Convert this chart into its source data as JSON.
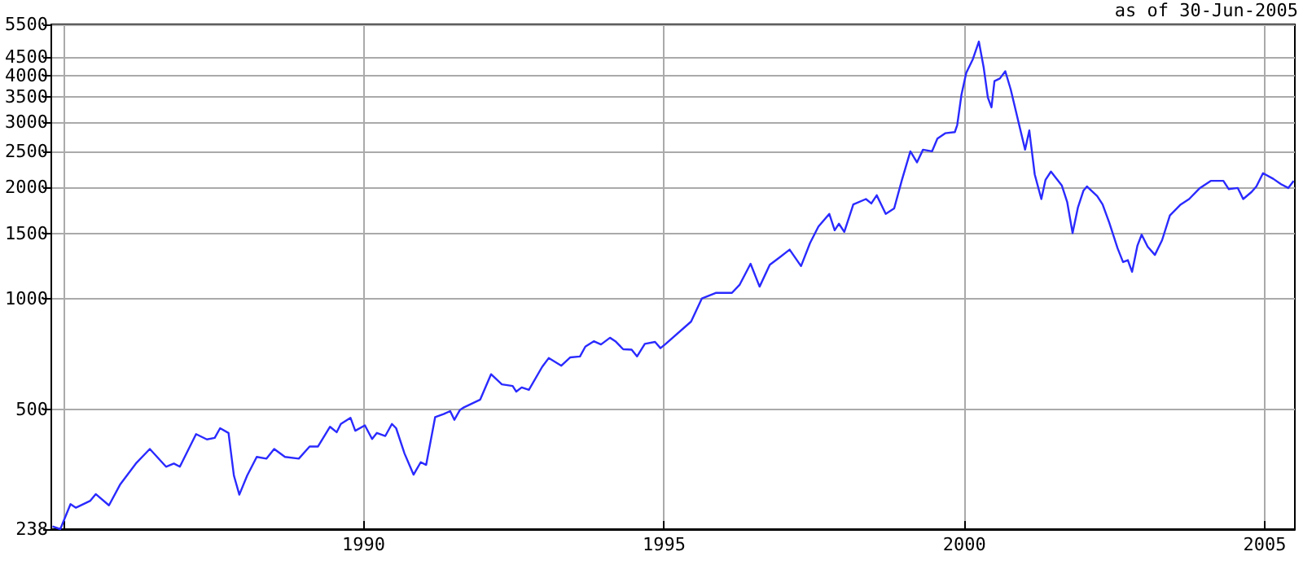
{
  "chart_data": {
    "type": "line",
    "annotations": [
      "as of 30-Jun-2005"
    ],
    "log": "y",
    "grid": true,
    "marker": "none",
    "line_style": "solid",
    "xlim": [
      1984.8,
      2005.5
    ],
    "xticks": [
      {
        "value": 1985,
        "label": null
      },
      1990,
      1995,
      2000,
      2005
    ],
    "ylim": [
      238,
      5500
    ],
    "yticks": [
      238,
      500,
      1000,
      1500,
      2000,
      2500,
      3000,
      3500,
      4000,
      4500,
      5500
    ],
    "series": [
      {
        "color": "#2a2aff",
        "x": [
          1984.82,
          1984.95,
          1985.12,
          1985.21,
          1985.45,
          1985.54,
          1985.76,
          1985.95,
          1986.22,
          1986.44,
          1986.71,
          1986.84,
          1986.94,
          1987.21,
          1987.39,
          1987.52,
          1987.61,
          1987.75,
          1987.84,
          1987.93,
          1988.06,
          1988.22,
          1988.38,
          1988.51,
          1988.69,
          1988.92,
          1989.1,
          1989.24,
          1989.44,
          1989.55,
          1989.62,
          1989.78,
          1989.86,
          1990.02,
          1990.14,
          1990.22,
          1990.36,
          1990.47,
          1990.54,
          1990.68,
          1990.83,
          1990.95,
          1991.04,
          1991.19,
          1991.33,
          1991.44,
          1991.51,
          1991.6,
          1991.67,
          1991.94,
          1992.12,
          1992.3,
          1992.48,
          1992.54,
          1992.63,
          1992.75,
          1992.97,
          1993.08,
          1993.29,
          1993.44,
          1993.6,
          1993.69,
          1993.83,
          1993.95,
          1994.1,
          1994.19,
          1994.32,
          1994.46,
          1994.55,
          1994.68,
          1994.85,
          1994.94,
          1995.02,
          1995.45,
          1995.63,
          1995.86,
          1996.13,
          1996.26,
          1996.44,
          1996.59,
          1996.76,
          1996.94,
          1997.09,
          1997.28,
          1997.43,
          1997.57,
          1997.75,
          1997.84,
          1997.91,
          1998.0,
          1998.15,
          1998.36,
          1998.45,
          1998.54,
          1998.69,
          1998.83,
          1998.96,
          1999.1,
          1999.21,
          1999.31,
          1999.46,
          1999.55,
          1999.68,
          1999.84,
          1999.88,
          1999.95,
          2000.03,
          2000.14,
          2000.24,
          2000.32,
          2000.39,
          2000.45,
          2000.5,
          2000.59,
          2000.68,
          2000.77,
          2000.9,
          2001.01,
          2001.08,
          2001.17,
          2001.28,
          2001.35,
          2001.44,
          2001.62,
          2001.71,
          2001.8,
          2001.89,
          2001.98,
          2002.04,
          2002.21,
          2002.3,
          2002.41,
          2002.55,
          2002.64,
          2002.72,
          2002.79,
          2002.88,
          2002.95,
          2003.05,
          2003.17,
          2003.29,
          2003.42,
          2003.6,
          2003.74,
          2003.92,
          2004.1,
          2004.31,
          2004.4,
          2004.55,
          2004.64,
          2004.78,
          2004.86,
          2004.97,
          2005.14,
          2005.27,
          2005.39,
          2005.48
        ],
        "values": [
          242,
          238,
          278,
          272,
          284,
          296,
          276,
          315,
          360,
          392,
          351,
          358,
          351,
          430,
          416,
          420,
          446,
          433,
          332,
          295,
          332,
          373,
          369,
          392,
          373,
          369,
          398,
          398,
          450,
          435,
          458,
          476,
          439,
          454,
          417,
          433,
          425,
          458,
          446,
          381,
          334,
          361,
          355,
          478,
          487,
          496,
          470,
          499,
          508,
          533,
          624,
          586,
          580,
          560,
          575,
          566,
          653,
          690,
          658,
          693,
          697,
          741,
          766,
          751,
          783,
          766,
          729,
          727,
          697,
          754,
          763,
          734,
          752,
          866,
          1000,
          1035,
          1035,
          1090,
          1241,
          1076,
          1233,
          1297,
          1355,
          1223,
          1412,
          1564,
          1692,
          1528,
          1592,
          1513,
          1794,
          1856,
          1806,
          1900,
          1692,
          1751,
          2092,
          2497,
          2332,
          2523,
          2497,
          2702,
          2795,
          2815,
          2942,
          3549,
          4070,
          4430,
          4943,
          4210,
          3490,
          3282,
          3866,
          3930,
          4110,
          3672,
          2994,
          2523,
          2843,
          2163,
          1856,
          2092,
          2202,
          2021,
          1823,
          1502,
          1764,
          1954,
          2007,
          1890,
          1794,
          1603,
          1365,
          1254,
          1269,
          1180,
          1390,
          1487,
          1380,
          1311,
          1437,
          1676,
          1794,
          1856,
          1988,
          2078,
          2078,
          1974,
          1988,
          1856,
          1940,
          2007,
          2180,
          2105,
          2035,
          1988,
          2078
        ]
      }
    ]
  }
}
